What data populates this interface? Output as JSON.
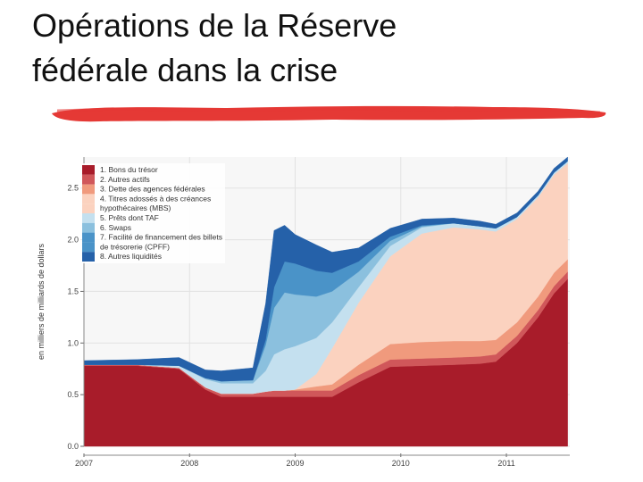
{
  "slide": {
    "title_line1": "Opérations de la Réserve",
    "title_line2": "fédérale dans la crise"
  },
  "colors": {
    "accent_brush": "#e53935"
  },
  "chart_data": {
    "type": "area",
    "stacked": true,
    "title": "",
    "xlabel": "",
    "ylabel": "en milliers de milliards de dollars",
    "xlim": [
      2007,
      2011.6
    ],
    "ylim": [
      0,
      2.8
    ],
    "yticks": [
      "0.0",
      "0.5",
      "1.0",
      "1.5",
      "2.0",
      "2.5"
    ],
    "ytick_values": [
      0,
      0.5,
      1.0,
      1.5,
      2.0,
      2.5
    ],
    "xticks": [
      "2007",
      "2008",
      "2009",
      "2010",
      "2011"
    ],
    "xtick_values": [
      2007,
      2008,
      2009,
      2010,
      2011
    ],
    "grid": true,
    "legend_position": "top-left",
    "legend": [
      {
        "text": "1. Bons du trésor",
        "color": "#a81c2a"
      },
      {
        "text": "2. Autres actifs",
        "color": "#d0575a"
      },
      {
        "text": "3. Dette des agences fédérales",
        "color": "#f09a7d"
      },
      {
        "text": "4. Titres adossés à des créances",
        "color": "#fbd2bf"
      },
      {
        "text": "hypothécaires (MBS)",
        "color": ""
      },
      {
        "text": "5. Prêts dont TAF",
        "color": "#c4e0ef"
      },
      {
        "text": "6. Swaps",
        "color": "#8bc0de"
      },
      {
        "text": "7. Facilité de financement des billets",
        "color": "#4a93c8"
      },
      {
        "text": "de trésorerie (CPFF)",
        "color": ""
      },
      {
        "text": "8. Autres liquidités",
        "color": "#2561a9"
      }
    ],
    "x": [
      2007.0,
      2007.5,
      2007.9,
      2008.15,
      2008.3,
      2008.6,
      2008.72,
      2008.8,
      2008.9,
      2009.0,
      2009.2,
      2009.35,
      2009.6,
      2009.9,
      2010.2,
      2010.5,
      2010.75,
      2010.9,
      2011.1,
      2011.3,
      2011.45,
      2011.58
    ],
    "series": [
      {
        "name": "1. Bons du trésor",
        "color": "#a81c2a",
        "values": [
          0.78,
          0.78,
          0.75,
          0.55,
          0.48,
          0.48,
          0.48,
          0.48,
          0.48,
          0.48,
          0.48,
          0.48,
          0.62,
          0.77,
          0.78,
          0.79,
          0.8,
          0.82,
          1.0,
          1.25,
          1.48,
          1.62
        ]
      },
      {
        "name": "2. Autres actifs",
        "color": "#d0575a",
        "values": [
          0.01,
          0.01,
          0.01,
          0.02,
          0.03,
          0.03,
          0.05,
          0.06,
          0.06,
          0.06,
          0.06,
          0.06,
          0.07,
          0.07,
          0.07,
          0.07,
          0.07,
          0.07,
          0.07,
          0.07,
          0.07,
          0.07
        ]
      },
      {
        "name": "3. Dette des agences fédérales",
        "color": "#f09a7d",
        "values": [
          0.0,
          0.0,
          0.0,
          0.0,
          0.0,
          0.0,
          0.0,
          0.0,
          0.0,
          0.01,
          0.04,
          0.06,
          0.1,
          0.15,
          0.16,
          0.16,
          0.15,
          0.14,
          0.13,
          0.13,
          0.13,
          0.12
        ]
      },
      {
        "name": "4. Titres adossés à des créances hypothécaires (MBS)",
        "color": "#fbd2bf",
        "values": [
          0.0,
          0.0,
          0.0,
          0.0,
          0.0,
          0.0,
          0.0,
          0.0,
          0.0,
          0.0,
          0.12,
          0.35,
          0.6,
          0.85,
          1.05,
          1.1,
          1.08,
          1.05,
          1.0,
          0.96,
          0.95,
          0.93
        ]
      },
      {
        "name": "5. Prêts dont TAF",
        "color": "#c4e0ef",
        "values": [
          0.0,
          0.0,
          0.02,
          0.08,
          0.1,
          0.1,
          0.2,
          0.35,
          0.4,
          0.42,
          0.35,
          0.25,
          0.15,
          0.1,
          0.06,
          0.04,
          0.03,
          0.03,
          0.02,
          0.02,
          0.02,
          0.02
        ]
      },
      {
        "name": "6. Swaps",
        "color": "#8bc0de",
        "values": [
          0.0,
          0.0,
          0.0,
          0.01,
          0.02,
          0.03,
          0.25,
          0.45,
          0.55,
          0.5,
          0.4,
          0.3,
          0.15,
          0.05,
          0.01,
          0.0,
          0.0,
          0.0,
          0.0,
          0.0,
          0.0,
          0.0
        ]
      },
      {
        "name": "7. Facilité de financement des billets de trésorerie (CPFF)",
        "color": "#4a93c8",
        "values": [
          0.0,
          0.0,
          0.0,
          0.0,
          0.0,
          0.0,
          0.05,
          0.2,
          0.3,
          0.3,
          0.25,
          0.18,
          0.1,
          0.04,
          0.01,
          0.0,
          0.0,
          0.0,
          0.0,
          0.0,
          0.0,
          0.0
        ]
      },
      {
        "name": "8. Autres liquidités",
        "color": "#2561a9",
        "values": [
          0.04,
          0.05,
          0.08,
          0.08,
          0.1,
          0.12,
          0.35,
          0.55,
          0.35,
          0.28,
          0.25,
          0.2,
          0.13,
          0.08,
          0.06,
          0.05,
          0.05,
          0.04,
          0.04,
          0.04,
          0.04,
          0.04
        ]
      }
    ]
  }
}
